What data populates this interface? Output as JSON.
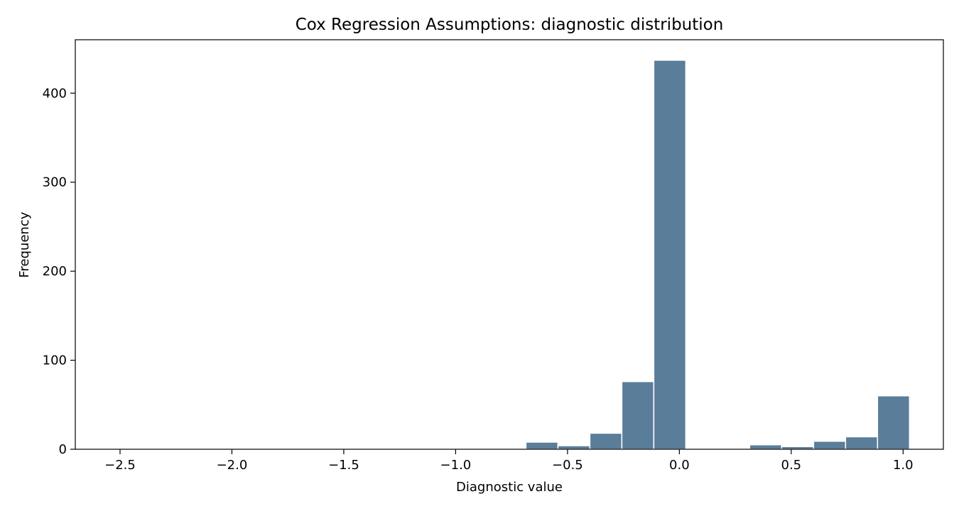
{
  "chart_data": {
    "type": "bar",
    "title": "Cox Regression Assumptions: diagnostic distribution",
    "xlabel": "Diagnostic value",
    "ylabel": "Frequency",
    "xlim": [
      -2.7,
      1.18
    ],
    "ylim": [
      0,
      460
    ],
    "grid": false,
    "x_ticks": [
      -2.5,
      -2.0,
      -1.5,
      -1.0,
      -0.5,
      0.0,
      0.5,
      1.0
    ],
    "x_tick_labels": [
      "−2.5",
      "−2.0",
      "−1.5",
      "−1.0",
      "−0.5",
      "0.0",
      "0.5",
      "1.0"
    ],
    "y_ticks": [
      0,
      100,
      200,
      300,
      400
    ],
    "y_tick_labels": [
      "0",
      "100",
      "200",
      "300",
      "400"
    ],
    "bar_color": "#5a7d99",
    "bins": [
      {
        "x0": -2.5429,
        "x1": -2.4,
        "count": 0
      },
      {
        "x0": -2.4,
        "x1": -2.2571,
        "count": 0
      },
      {
        "x0": -2.2571,
        "x1": -2.1143,
        "count": 0
      },
      {
        "x0": -2.1143,
        "x1": -1.9714,
        "count": 0
      },
      {
        "x0": -1.9714,
        "x1": -1.8286,
        "count": 0
      },
      {
        "x0": -1.8286,
        "x1": -1.6857,
        "count": 0
      },
      {
        "x0": -1.6857,
        "x1": -1.5429,
        "count": 0
      },
      {
        "x0": -1.5429,
        "x1": -1.4,
        "count": 0
      },
      {
        "x0": -1.4,
        "x1": -1.2571,
        "count": 0
      },
      {
        "x0": -1.2571,
        "x1": -1.1143,
        "count": 0
      },
      {
        "x0": -1.1143,
        "x1": -0.9714,
        "count": 0
      },
      {
        "x0": -0.9714,
        "x1": -0.8286,
        "count": 1
      },
      {
        "x0": -0.8286,
        "x1": -0.6857,
        "count": 0
      },
      {
        "x0": -0.6857,
        "x1": -0.5429,
        "count": 8
      },
      {
        "x0": -0.5429,
        "x1": -0.4,
        "count": 4
      },
      {
        "x0": -0.4,
        "x1": -0.2571,
        "count": 18
      },
      {
        "x0": -0.2571,
        "x1": -0.1143,
        "count": 76
      },
      {
        "x0": -0.1143,
        "x1": 0.0286,
        "count": 437
      },
      {
        "x0": 0.0286,
        "x1": 0.1714,
        "count": 0
      },
      {
        "x0": 0.1714,
        "x1": 0.3143,
        "count": 0
      },
      {
        "x0": 0.3143,
        "x1": 0.4571,
        "count": 5
      },
      {
        "x0": 0.4571,
        "x1": 0.6,
        "count": 3
      },
      {
        "x0": 0.6,
        "x1": 0.7429,
        "count": 9
      },
      {
        "x0": 0.7429,
        "x1": 0.8857,
        "count": 14
      },
      {
        "x0": 0.8857,
        "x1": 1.0286,
        "count": 60
      }
    ]
  }
}
